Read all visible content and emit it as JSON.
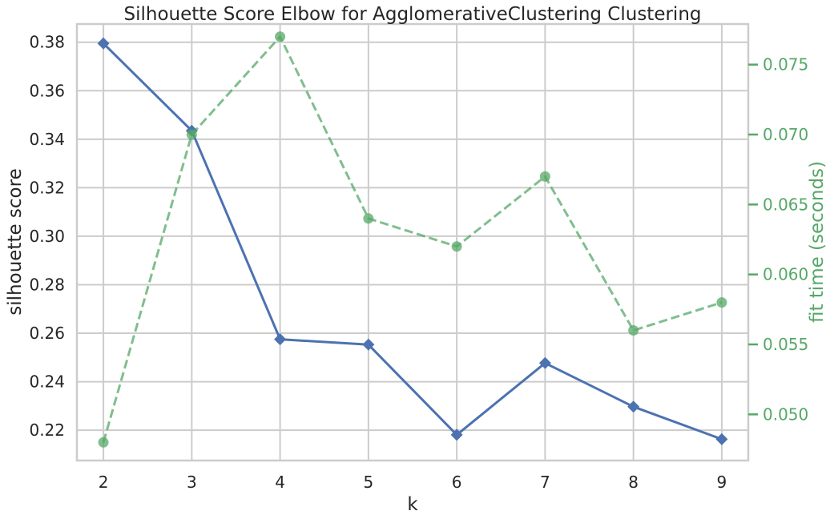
{
  "chart_data": {
    "type": "line",
    "title": "Silhouette Score Elbow for AgglomerativeClustering Clustering",
    "xlabel": "k",
    "ylabel": "silhouette score",
    "y2label": "fit time (seconds)",
    "x": [
      2,
      3,
      4,
      5,
      6,
      7,
      8,
      9
    ],
    "xlim": [
      1.7,
      9.3
    ],
    "ylim": [
      0.2075,
      0.3875
    ],
    "y2lim": [
      0.0467,
      0.0779
    ],
    "yticks": [
      "0.22",
      "0.24",
      "0.26",
      "0.28",
      "0.30",
      "0.32",
      "0.34",
      "0.36",
      "0.38"
    ],
    "y2ticks": [
      "0.050",
      "0.055",
      "0.060",
      "0.065",
      "0.070",
      "0.075"
    ],
    "grid": true,
    "series": [
      {
        "values": [
          0.3795,
          0.3435,
          0.2575,
          0.2553,
          0.2181,
          0.2477,
          0.2297,
          0.2163
        ],
        "axis": "left",
        "color": "#4c72b0",
        "marker": "diamond",
        "linestyle": "solid"
      },
      {
        "values": [
          0.048,
          0.07,
          0.077,
          0.064,
          0.062,
          0.067,
          0.056,
          0.058
        ],
        "axis": "right",
        "color": "#55a868",
        "marker": "circle",
        "linestyle": "dashed"
      }
    ]
  }
}
